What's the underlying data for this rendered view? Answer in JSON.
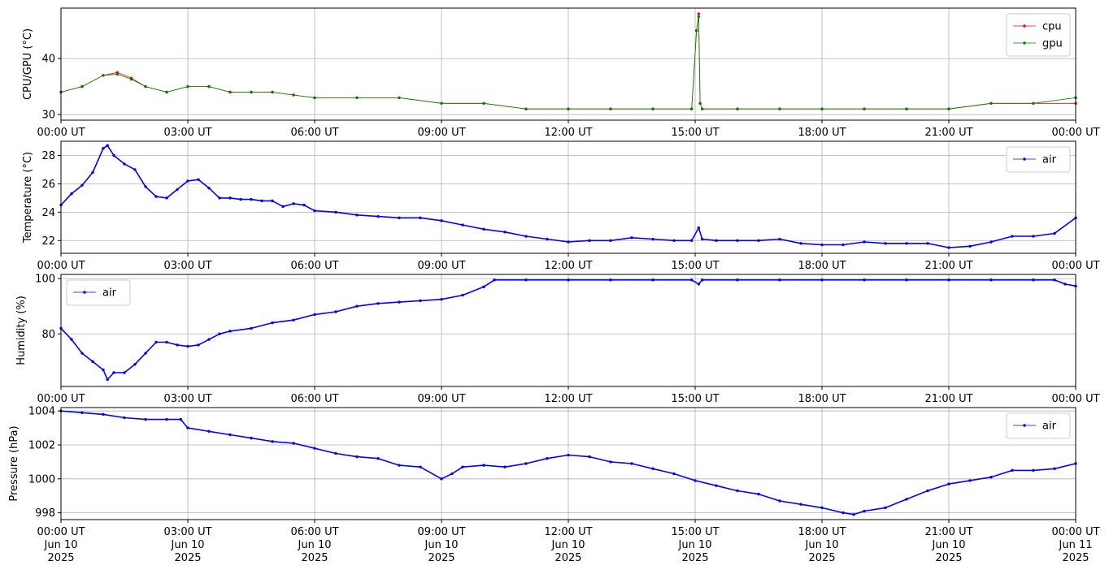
{
  "chart_data": [
    {
      "type": "line",
      "ylabel": "CPU/GPU (°C)",
      "xlim": [
        "2025-06-10T00:00Z",
        "2025-06-11T00:00Z"
      ],
      "ylim": [
        29,
        49
      ],
      "yticks": [
        30,
        40
      ],
      "grid": true,
      "legend": "top-right",
      "xtick_labels": [
        "00:00 UT",
        "03:00 UT",
        "06:00 UT",
        "09:00 UT",
        "12:00 UT",
        "15:00 UT",
        "18:00 UT",
        "21:00 UT",
        "00:00 UT"
      ],
      "series": [
        {
          "name": "cpu",
          "color": "#ff0000",
          "x": [
            "00:00",
            "00:30",
            "01:00",
            "01:20",
            "01:40",
            "02:00",
            "02:30",
            "03:00",
            "03:30",
            "04:00",
            "04:30",
            "05:00",
            "05:30",
            "06:00",
            "07:00",
            "08:00",
            "09:00",
            "10:00",
            "11:00",
            "12:00",
            "13:00",
            "14:00",
            "14:55",
            "15:02",
            "15:05",
            "15:07",
            "15:10",
            "16:00",
            "17:00",
            "18:00",
            "19:00",
            "20:00",
            "21:00",
            "22:00",
            "23:00",
            "24:00"
          ],
          "y": [
            34,
            35,
            37,
            37.5,
            36.5,
            35,
            34,
            35,
            35,
            34,
            34,
            34,
            33.5,
            33,
            33,
            33,
            32,
            32,
            31,
            31,
            31,
            31,
            31,
            45,
            48,
            32,
            31,
            31,
            31,
            31,
            31,
            31,
            31,
            32,
            32,
            32
          ]
        },
        {
          "name": "gpu",
          "color": "#008000",
          "x": [
            "00:00",
            "00:30",
            "01:00",
            "01:20",
            "01:40",
            "02:00",
            "02:30",
            "03:00",
            "03:30",
            "04:00",
            "04:30",
            "05:00",
            "05:30",
            "06:00",
            "07:00",
            "08:00",
            "09:00",
            "10:00",
            "11:00",
            "12:00",
            "13:00",
            "14:00",
            "14:55",
            "15:02",
            "15:05",
            "15:07",
            "15:10",
            "16:00",
            "17:00",
            "18:00",
            "19:00",
            "20:00",
            "21:00",
            "22:00",
            "23:00",
            "24:00"
          ],
          "y": [
            34,
            35,
            37,
            37.2,
            36.3,
            35,
            34,
            35,
            35,
            34,
            34,
            34,
            33.5,
            33,
            33,
            33,
            32,
            32,
            31,
            31,
            31,
            31,
            31,
            45,
            47.5,
            32,
            31,
            31,
            31,
            31,
            31,
            31,
            31,
            32,
            32,
            33
          ]
        }
      ]
    },
    {
      "type": "line",
      "ylabel": "Temperature (°C)",
      "xlim": [
        "2025-06-10T00:00Z",
        "2025-06-11T00:00Z"
      ],
      "ylim": [
        21.1,
        29
      ],
      "yticks": [
        22,
        24,
        26,
        28
      ],
      "grid": true,
      "legend": "top-right",
      "xtick_labels": [
        "00:00 UT",
        "03:00 UT",
        "06:00 UT",
        "09:00 UT",
        "12:00 UT",
        "15:00 UT",
        "18:00 UT",
        "21:00 UT",
        "00:00 UT"
      ],
      "series": [
        {
          "name": "air",
          "color": "#0000ff",
          "x": [
            "00:00",
            "00:15",
            "00:30",
            "00:45",
            "01:00",
            "01:06",
            "01:15",
            "01:30",
            "01:45",
            "02:00",
            "02:15",
            "02:30",
            "02:45",
            "03:00",
            "03:15",
            "03:30",
            "03:45",
            "04:00",
            "04:15",
            "04:30",
            "04:45",
            "05:00",
            "05:15",
            "05:30",
            "05:45",
            "06:00",
            "06:30",
            "07:00",
            "07:30",
            "08:00",
            "08:30",
            "09:00",
            "09:30",
            "10:00",
            "10:30",
            "11:00",
            "11:30",
            "12:00",
            "12:30",
            "13:00",
            "13:30",
            "14:00",
            "14:30",
            "14:55",
            "15:05",
            "15:10",
            "15:30",
            "16:00",
            "16:30",
            "17:00",
            "17:30",
            "18:00",
            "18:30",
            "19:00",
            "19:30",
            "20:00",
            "20:30",
            "21:00",
            "21:30",
            "22:00",
            "22:30",
            "23:00",
            "23:30",
            "24:00"
          ],
          "y": [
            24.5,
            25.3,
            25.9,
            26.8,
            28.5,
            28.7,
            28.0,
            27.4,
            27.0,
            25.8,
            25.1,
            25.0,
            25.6,
            26.2,
            26.3,
            25.7,
            25.0,
            25.0,
            24.9,
            24.9,
            24.8,
            24.8,
            24.4,
            24.6,
            24.5,
            24.1,
            24.0,
            23.8,
            23.7,
            23.6,
            23.6,
            23.4,
            23.1,
            22.8,
            22.6,
            22.3,
            22.1,
            21.9,
            22.0,
            22.0,
            22.2,
            22.1,
            22.0,
            22.0,
            22.9,
            22.1,
            22.0,
            22.0,
            22.0,
            22.1,
            21.8,
            21.7,
            21.7,
            21.9,
            21.8,
            21.8,
            21.8,
            21.5,
            21.6,
            21.9,
            22.3,
            22.3,
            22.5,
            23.6
          ]
        }
      ]
    },
    {
      "type": "line",
      "ylabel": "Humidity (%)",
      "xlim": [
        "2025-06-10T00:00Z",
        "2025-06-11T00:00Z"
      ],
      "ylim": [
        61,
        101.5
      ],
      "yticks": [
        80,
        100
      ],
      "grid": true,
      "legend": "top-left",
      "xtick_labels": [
        "00:00 UT",
        "03:00 UT",
        "06:00 UT",
        "09:00 UT",
        "12:00 UT",
        "15:00 UT",
        "18:00 UT",
        "21:00 UT",
        "00:00 UT"
      ],
      "series": [
        {
          "name": "air",
          "color": "#0000ff",
          "x": [
            "00:00",
            "00:15",
            "00:30",
            "00:45",
            "01:00",
            "01:06",
            "01:15",
            "01:30",
            "01:45",
            "02:00",
            "02:15",
            "02:30",
            "02:45",
            "03:00",
            "03:15",
            "03:30",
            "03:45",
            "04:00",
            "04:30",
            "05:00",
            "05:30",
            "06:00",
            "06:30",
            "07:00",
            "07:30",
            "08:00",
            "08:30",
            "09:00",
            "09:30",
            "10:00",
            "10:15",
            "11:00",
            "12:00",
            "13:00",
            "14:00",
            "14:55",
            "15:05",
            "15:10",
            "16:00",
            "17:00",
            "18:00",
            "19:00",
            "20:00",
            "21:00",
            "22:00",
            "23:00",
            "23:30",
            "23:45",
            "24:00"
          ],
          "y": [
            82,
            78,
            73,
            70,
            67,
            63.5,
            66,
            66,
            69,
            73,
            77,
            77,
            76,
            75.5,
            76,
            78,
            80,
            81,
            82,
            84,
            85,
            87,
            88,
            90,
            91,
            91.5,
            92,
            92.5,
            94,
            97,
            99.5,
            99.5,
            99.5,
            99.5,
            99.5,
            99.5,
            98,
            99.5,
            99.5,
            99.5,
            99.5,
            99.5,
            99.5,
            99.5,
            99.5,
            99.5,
            99.5,
            98,
            97.3
          ]
        }
      ]
    },
    {
      "type": "line",
      "ylabel": "Pressure (hPa)",
      "xlim": [
        "2025-06-10T00:00Z",
        "2025-06-11T00:00Z"
      ],
      "ylim": [
        997.6,
        1004.2
      ],
      "yticks": [
        998,
        1000,
        1002,
        1004
      ],
      "grid": true,
      "legend": "top-right",
      "xtick_labels": [
        "00:00 UT\nJun 10\n2025",
        "03:00 UT\nJun 10\n2025",
        "06:00 UT\nJun 10\n2025",
        "09:00 UT\nJun 10\n2025",
        "12:00 UT\nJun 10\n2025",
        "15:00 UT\nJun 10\n2025",
        "18:00 UT\nJun 10\n2025",
        "21:00 UT\nJun 10\n2025",
        "00:00 UT\nJun 11\n2025"
      ],
      "series": [
        {
          "name": "air",
          "color": "#0000ff",
          "x": [
            "00:00",
            "00:30",
            "01:00",
            "01:30",
            "02:00",
            "02:30",
            "02:50",
            "03:00",
            "03:30",
            "04:00",
            "04:30",
            "05:00",
            "05:30",
            "06:00",
            "06:30",
            "07:00",
            "07:30",
            "08:00",
            "08:30",
            "09:00",
            "09:15",
            "09:30",
            "10:00",
            "10:30",
            "11:00",
            "11:30",
            "12:00",
            "12:30",
            "13:00",
            "13:30",
            "14:00",
            "14:30",
            "15:00",
            "15:30",
            "16:00",
            "16:30",
            "17:00",
            "17:30",
            "18:00",
            "18:30",
            "18:45",
            "19:00",
            "19:30",
            "20:00",
            "20:30",
            "21:00",
            "21:30",
            "22:00",
            "22:30",
            "23:00",
            "23:30",
            "24:00"
          ],
          "y": [
            1004,
            1003.9,
            1003.8,
            1003.6,
            1003.5,
            1003.5,
            1003.5,
            1003.0,
            1002.8,
            1002.6,
            1002.4,
            1002.2,
            1002.1,
            1001.8,
            1001.5,
            1001.3,
            1001.2,
            1000.8,
            1000.7,
            1000.0,
            1000.3,
            1000.7,
            1000.8,
            1000.7,
            1000.9,
            1001.2,
            1001.4,
            1001.3,
            1001.0,
            1000.9,
            1000.6,
            1000.3,
            999.9,
            999.6,
            999.3,
            999.1,
            998.7,
            998.5,
            998.3,
            998.0,
            997.9,
            998.1,
            998.3,
            998.8,
            999.3,
            999.7,
            999.9,
            1000.1,
            1000.5,
            1000.5,
            1000.6,
            1000.9
          ]
        }
      ]
    }
  ]
}
